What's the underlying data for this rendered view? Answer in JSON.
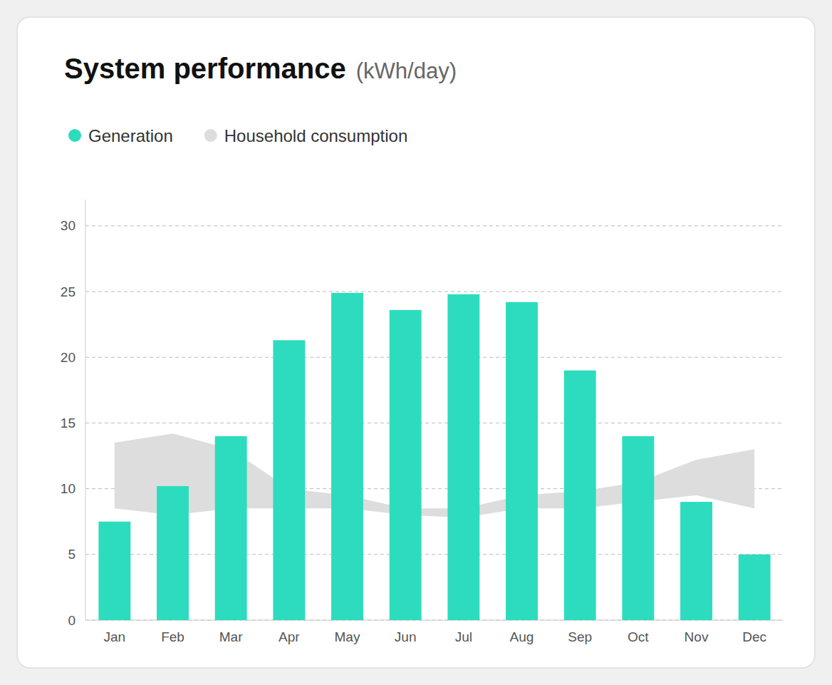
{
  "chart_data": {
    "type": "bar",
    "title": "System performance",
    "subtitle": "(kWh/day)",
    "categories": [
      "Jan",
      "Feb",
      "Mar",
      "Apr",
      "May",
      "Jun",
      "Jul",
      "Aug",
      "Sep",
      "Oct",
      "Nov",
      "Dec"
    ],
    "series": [
      {
        "name": "Generation",
        "type": "bar",
        "color": "#2DDCBE",
        "values": [
          7.5,
          10.2,
          14.0,
          21.3,
          24.9,
          23.6,
          24.8,
          24.2,
          19.0,
          14.0,
          9.0,
          5.0
        ]
      },
      {
        "name": "Household consumption",
        "type": "area",
        "color": "#DDDDDD",
        "values": [
          13.5,
          14.2,
          13.0,
          10.0,
          9.5,
          8.5,
          8.5,
          9.5,
          9.8,
          10.5,
          12.2,
          13.0
        ],
        "lower": [
          8.5,
          8.0,
          8.5,
          8.5,
          8.5,
          8.0,
          7.8,
          8.5,
          8.5,
          9.0,
          9.5,
          8.5
        ]
      }
    ],
    "ylim": [
      0,
      32
    ],
    "yticks": [
      0,
      5,
      10,
      15,
      20,
      25,
      30
    ],
    "grid": true,
    "legend": "top-left"
  }
}
